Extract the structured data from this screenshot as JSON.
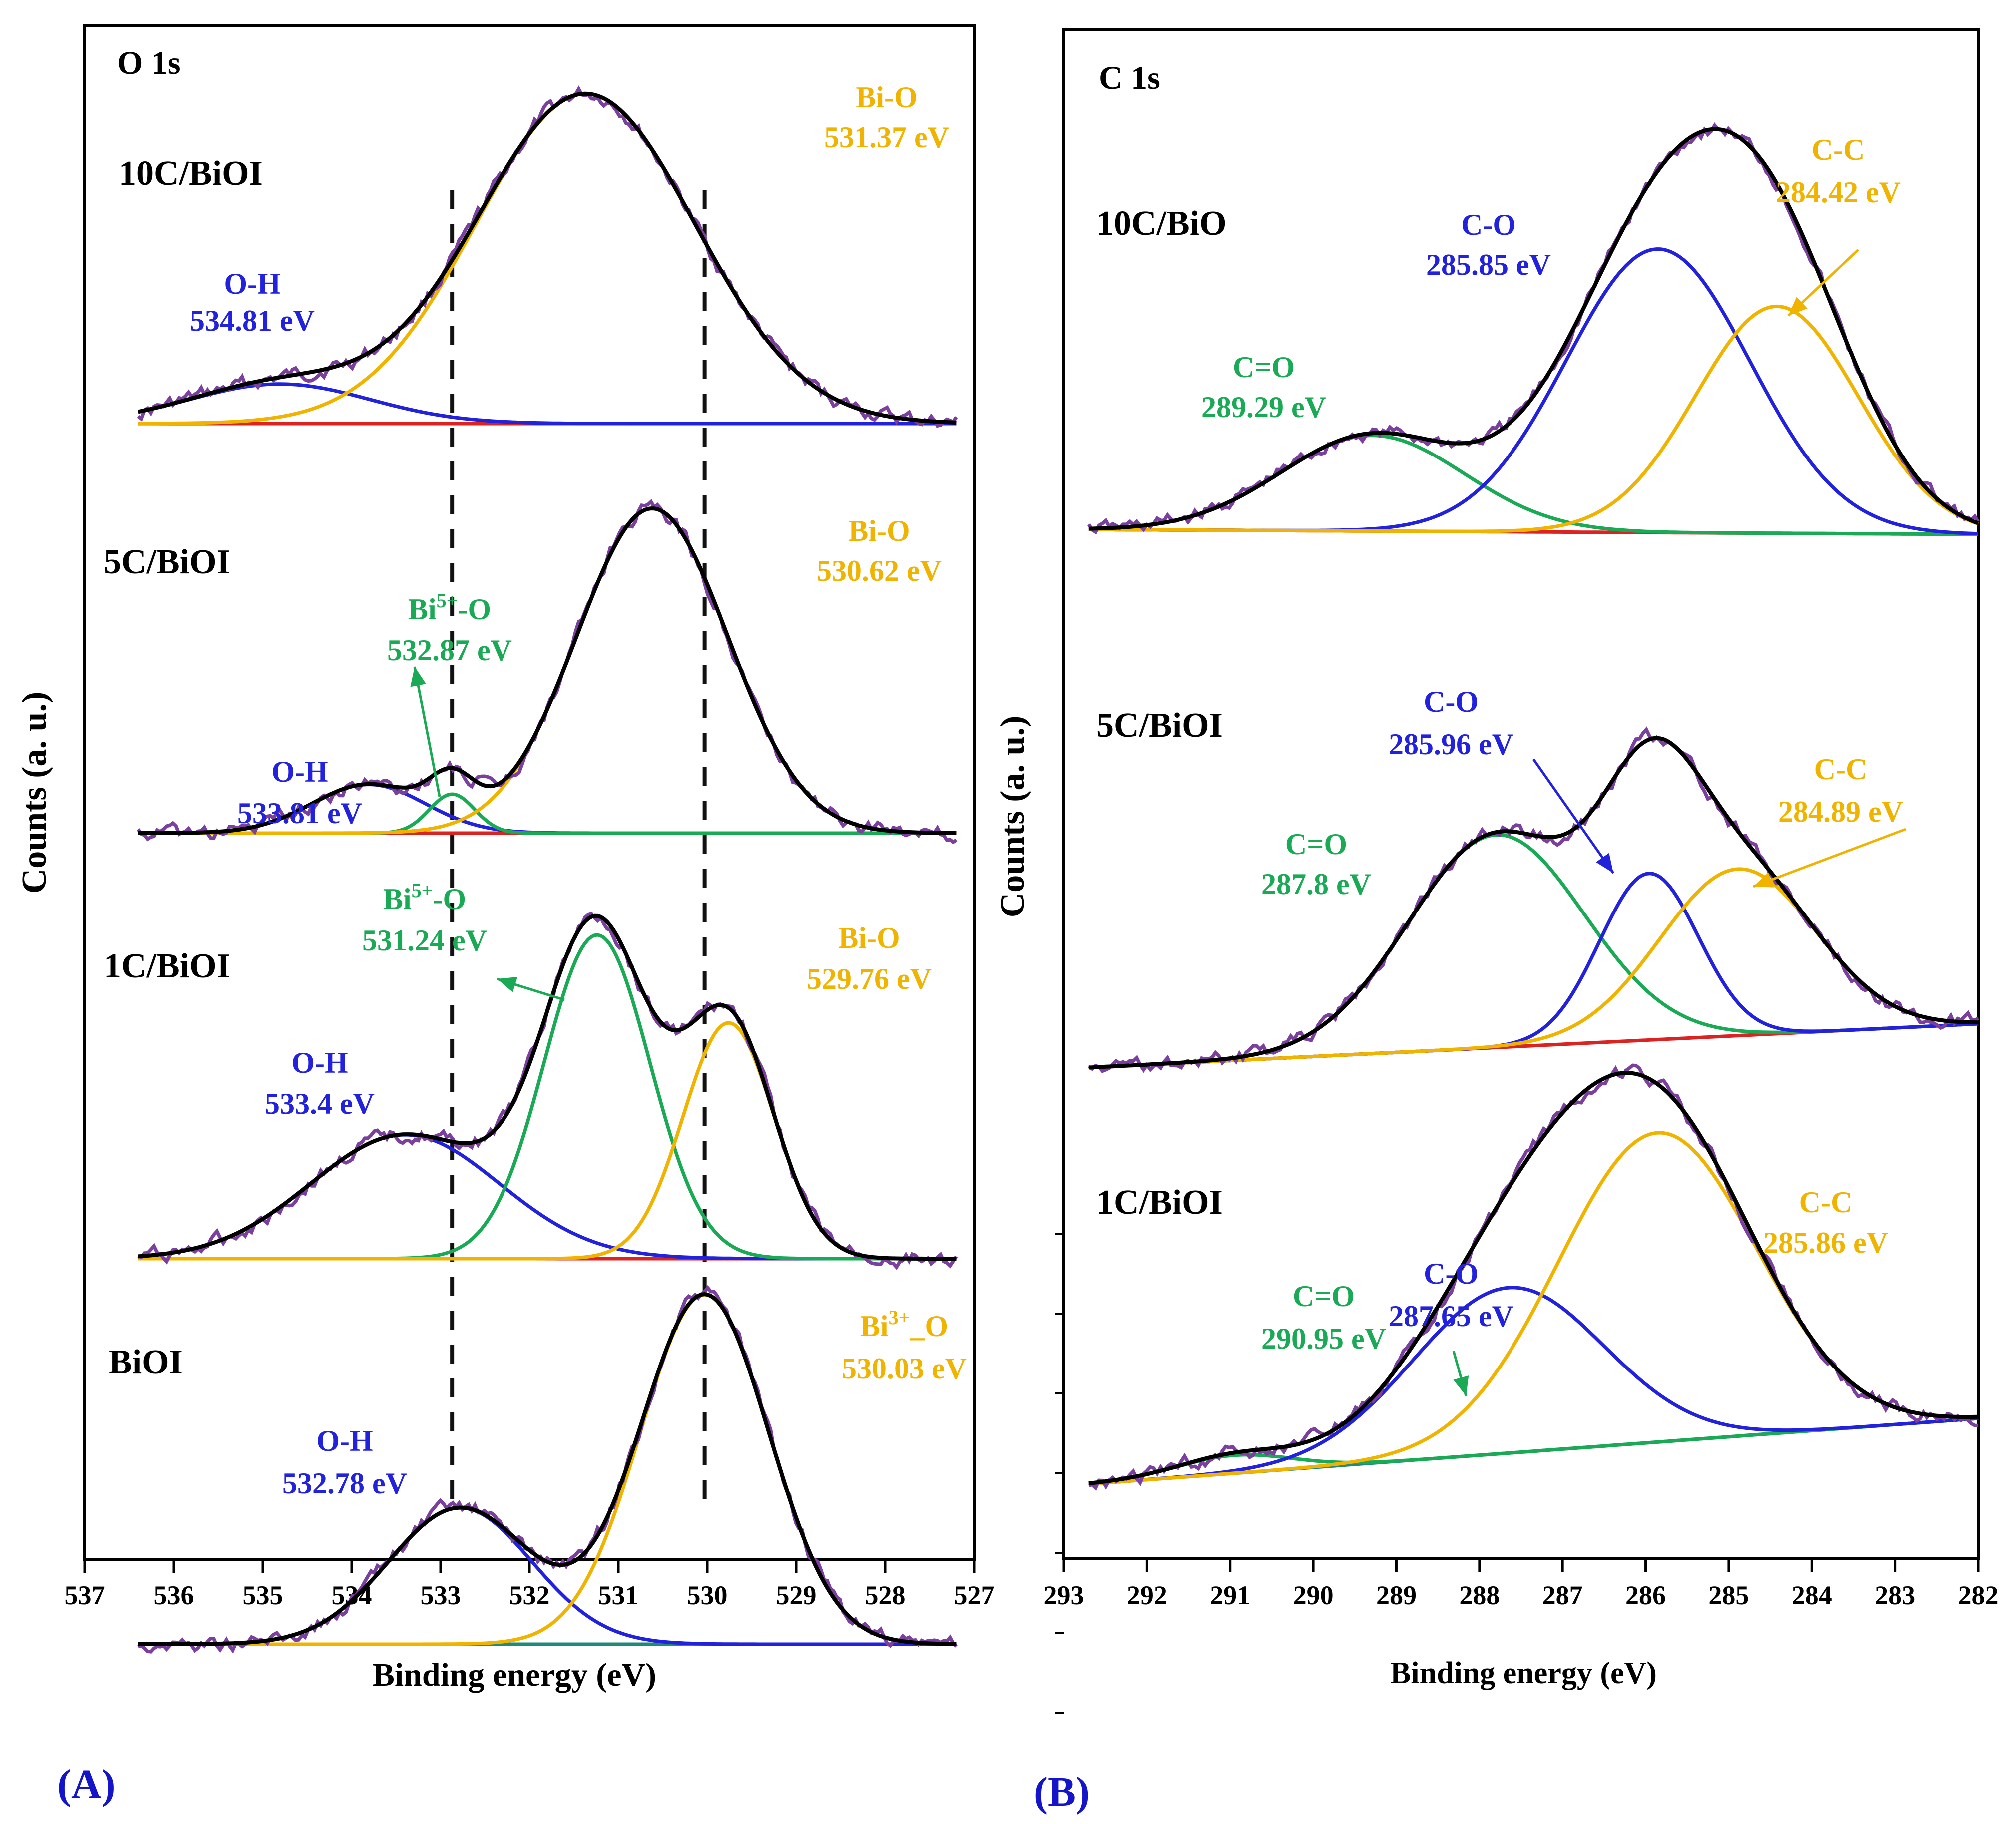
{
  "colors": {
    "measured": "#7b3f9e",
    "envelope": "#000000",
    "baseline": "#dd2222",
    "baseline_alt": "#1f8a7a",
    "oh": "#2222dd",
    "co": "#2222dd",
    "bio": "#f0b400",
    "cc": "#f0b400",
    "bi5": "#1aaa55",
    "c_eq_o": "#1aaa55",
    "panel_label": "#1414c8"
  },
  "chart_data": [
    {
      "type": "line",
      "panel_label": "(A)",
      "title": "O 1s",
      "xlabel": "Binding  energy (eV)",
      "ylabel": "Counts (a. u.)",
      "xlim": [
        537,
        527
      ],
      "xticks": [
        537,
        536,
        535,
        534,
        533,
        532,
        531,
        530,
        529,
        528,
        527
      ],
      "reference_lines_eV": [
        532.87,
        530.03
      ],
      "spectra": [
        {
          "sample": "10C/BiOI",
          "peaks": [
            {
              "name": "O-H",
              "value": "534.81 eV",
              "center_eV": 534.81,
              "fwhm_eV": 2.4,
              "rel_height": 0.12,
              "color": "oh"
            },
            {
              "name": "Bi-O",
              "value": "531.37 eV",
              "center_eV": 531.37,
              "fwhm_eV": 2.9,
              "rel_height": 1.0,
              "color": "bio"
            }
          ]
        },
        {
          "sample": "5C/BiOI",
          "peaks": [
            {
              "name": "O-H",
              "value": "533.81 eV",
              "center_eV": 533.81,
              "fwhm_eV": 1.5,
              "rel_height": 0.15,
              "color": "oh"
            },
            {
              "name": "Bi5+-O",
              "name_base": "Bi",
              "name_sup": "5+",
              "name_rest": "-O",
              "value": "532.87 eV",
              "center_eV": 532.87,
              "fwhm_eV": 0.6,
              "rel_height": 0.12,
              "color": "bi5"
            },
            {
              "name": "Bi-O",
              "value": "530.62 eV",
              "center_eV": 530.62,
              "fwhm_eV": 2.0,
              "rel_height": 1.0,
              "color": "bio"
            }
          ]
        },
        {
          "sample": "1C/BiOI",
          "peaks": [
            {
              "name": "O-H",
              "value": "533.4 eV",
              "center_eV": 533.4,
              "fwhm_eV": 2.5,
              "rel_height": 0.31,
              "color": "oh"
            },
            {
              "name": "Bi5+-O",
              "name_base": "Bi",
              "name_sup": "5+",
              "name_rest": "-O",
              "value": "531.24 eV",
              "center_eV": 531.24,
              "fwhm_eV": 1.4,
              "rel_height": 0.81,
              "color": "bi5"
            },
            {
              "name": "Bi-O",
              "value": "529.76 eV",
              "center_eV": 529.76,
              "fwhm_eV": 1.2,
              "rel_height": 0.59,
              "color": "bio"
            }
          ]
        },
        {
          "sample": "BiOI",
          "peaks": [
            {
              "name": "O-H",
              "value": "532.78 eV",
              "center_eV": 532.78,
              "fwhm_eV": 1.9,
              "rel_height": 0.39,
              "color": "oh"
            },
            {
              "name": "Bi3+_O",
              "name_base": "Bi",
              "name_sup": "3+",
              "name_rest": "_O",
              "value": "530.03 eV",
              "center_eV": 530.03,
              "fwhm_eV": 1.7,
              "rel_height": 1.0,
              "color": "bio"
            }
          ]
        }
      ]
    },
    {
      "type": "line",
      "panel_label": "(B)",
      "title": "C 1s",
      "xlabel": "Binding energy (eV)",
      "ylabel": "Counts (a. u.)",
      "xlim": [
        293,
        282
      ],
      "xticks": [
        293,
        292,
        291,
        290,
        289,
        288,
        287,
        286,
        285,
        284,
        283,
        282
      ],
      "spectra": [
        {
          "sample": "10C/BiO",
          "peaks": [
            {
              "name": "C=O",
              "value": "289.29 eV",
              "center_eV": 289.29,
              "fwhm_eV": 2.6,
              "rel_height": 0.27,
              "color": "c_eq_o"
            },
            {
              "name": "C-O",
              "value": "285.85 eV",
              "center_eV": 285.85,
              "fwhm_eV": 2.6,
              "rel_height": 0.8,
              "color": "co"
            },
            {
              "name": "C-C",
              "value": "284.42 eV",
              "center_eV": 284.42,
              "fwhm_eV": 2.3,
              "rel_height": 0.64,
              "color": "cc"
            }
          ]
        },
        {
          "sample": "5C/BiOI",
          "peaks": [
            {
              "name": "C=O",
              "value": "287.8 eV",
              "center_eV": 287.8,
              "fwhm_eV": 2.5,
              "rel_height": 0.6,
              "color": "c_eq_o"
            },
            {
              "name": "C-O",
              "value": "285.96 eV",
              "center_eV": 285.96,
              "fwhm_eV": 1.4,
              "rel_height": 0.47,
              "color": "co"
            },
            {
              "name": "C-C",
              "value": "284.89 eV",
              "center_eV": 284.89,
              "fwhm_eV": 2.2,
              "rel_height": 0.47,
              "color": "cc"
            }
          ]
        },
        {
          "sample": "1C/BiOI",
          "peaks": [
            {
              "name": "C=O",
              "value": "290.95 eV",
              "center_eV": 290.95,
              "fwhm_eV": 1.6,
              "rel_height": 0.05,
              "color": "c_eq_o"
            },
            {
              "name": "C-O",
              "value": "287.65 eV",
              "center_eV": 287.65,
              "fwhm_eV": 2.7,
              "rel_height": 0.46,
              "color": "co"
            },
            {
              "name": "C-C",
              "value": "285.86 eV",
              "center_eV": 285.86,
              "fwhm_eV": 2.8,
              "rel_height": 0.86,
              "color": "cc"
            }
          ]
        }
      ]
    }
  ]
}
